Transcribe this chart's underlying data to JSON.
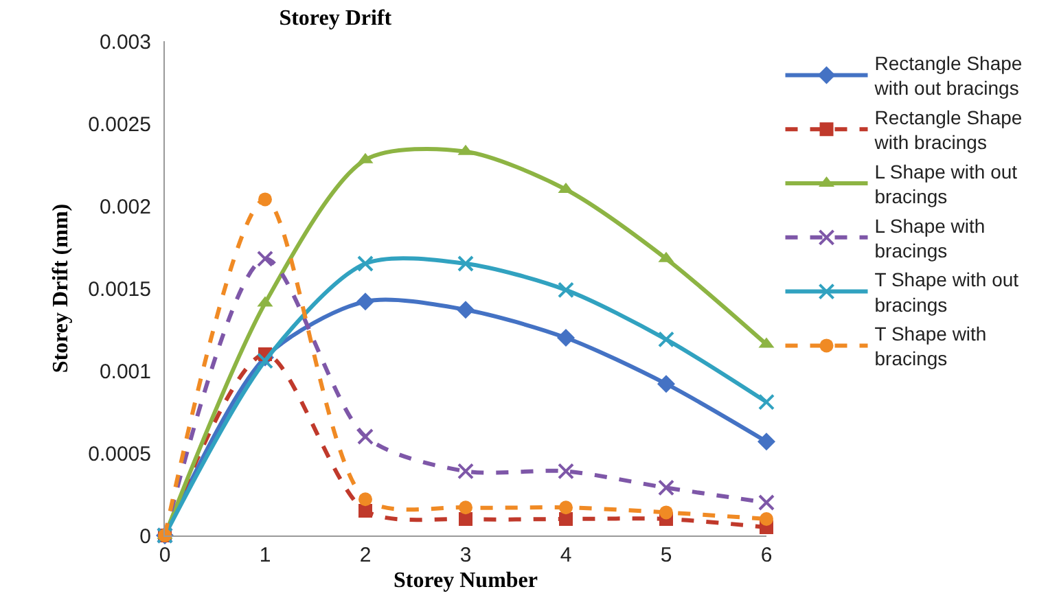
{
  "chart_data": {
    "type": "line",
    "title": "Storey Drift",
    "xlabel": "Storey Number",
    "ylabel": "Storey Drift (mm)",
    "x": [
      0,
      1,
      2,
      3,
      4,
      5,
      6
    ],
    "xlim": [
      0,
      6
    ],
    "xticks": [
      0,
      1,
      2,
      3,
      4,
      5,
      6
    ],
    "ylim": [
      0,
      0.003
    ],
    "yticks": [
      0,
      0.0005,
      0.001,
      0.0015,
      0.002,
      0.0025,
      0.003
    ],
    "grid": false,
    "legend": "right",
    "series": [
      {
        "name": "Rectangle Shape with out bracings",
        "color": "#4472c4",
        "marker": "diamond",
        "line_style": "solid",
        "values": [
          0,
          0.00108,
          0.00142,
          0.00137,
          0.0012,
          0.00092,
          0.00057
        ]
      },
      {
        "name": "Rectangle Shape with bracings",
        "color": "#c0392b",
        "marker": "square",
        "line_style": "dashed",
        "values": [
          0,
          0.0011,
          0.00015,
          0.0001,
          0.0001,
          0.0001,
          5e-05
        ]
      },
      {
        "name": "L Shape with out bracings",
        "color": "#8db443",
        "marker": "triangle",
        "line_style": "solid",
        "values": [
          0,
          0.00141,
          0.00228,
          0.00233,
          0.0021,
          0.00168,
          0.00116
        ]
      },
      {
        "name": "L Shape with bracings",
        "color": "#7e57a8",
        "marker": "cross",
        "line_style": "dashed",
        "values": [
          0,
          0.00168,
          0.0006,
          0.00039,
          0.00039,
          0.00029,
          0.0002
        ]
      },
      {
        "name": "T Shape with out bracings",
        "color": "#31a2c0",
        "marker": "cross",
        "line_style": "solid",
        "values": [
          0,
          0.00106,
          0.00165,
          0.00165,
          0.00149,
          0.00119,
          0.00081
        ]
      },
      {
        "name": "T Shape with bracings",
        "color": "#f08a24",
        "marker": "circle",
        "line_style": "dashed",
        "values": [
          0,
          0.00204,
          0.00022,
          0.00017,
          0.00017,
          0.00014,
          0.0001
        ]
      }
    ]
  }
}
